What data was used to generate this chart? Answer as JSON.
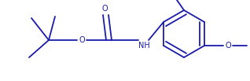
{
  "bg_color": "#ffffff",
  "line_color": "#1a1aaa",
  "line_width": 1.3,
  "text_color": "#1a1aaa",
  "font_size": 7.0,
  "figsize": [
    3.18,
    1.03
  ],
  "dpi": 100,
  "xlim": [
    0,
    318
  ],
  "ylim": [
    0,
    103
  ]
}
